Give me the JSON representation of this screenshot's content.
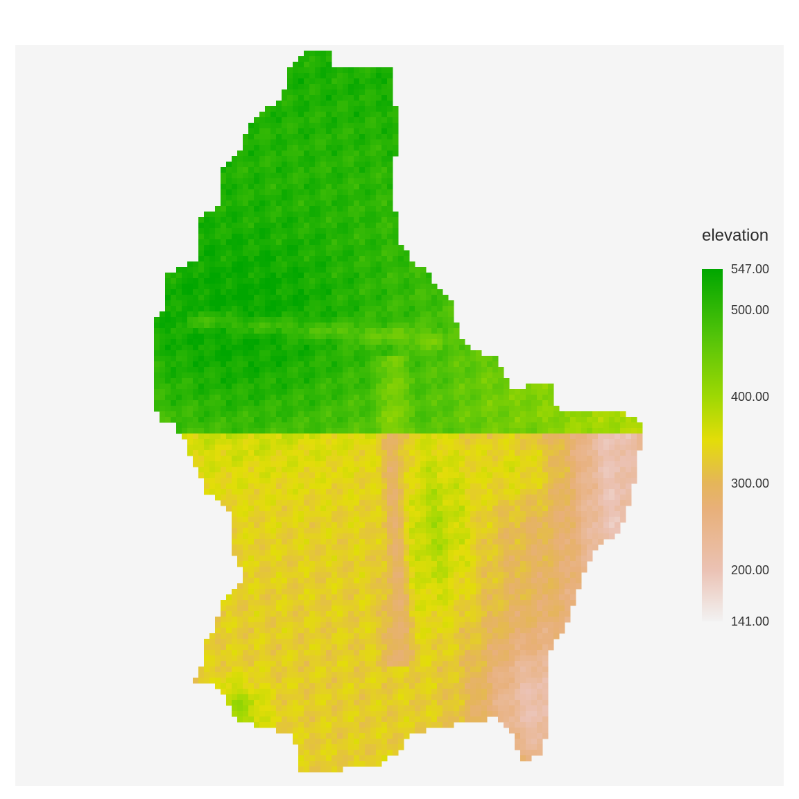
{
  "legend": {
    "title": "elevation",
    "min": 141,
    "max": 547,
    "ticks": [
      {
        "value": 547,
        "label": "547.00"
      },
      {
        "value": 500,
        "label": "500.00"
      },
      {
        "value": 400,
        "label": "400.00"
      },
      {
        "value": 300,
        "label": "300.00"
      },
      {
        "value": 200,
        "label": "200.00"
      },
      {
        "value": 141,
        "label": "141.00"
      }
    ],
    "color_stops": [
      {
        "value": 141,
        "color": "#f2f2f2"
      },
      {
        "value": 200,
        "color": "#ebc2b4"
      },
      {
        "value": 270,
        "color": "#e8b07a"
      },
      {
        "value": 300,
        "color": "#e5b55a"
      },
      {
        "value": 350,
        "color": "#e3dd09"
      },
      {
        "value": 400,
        "color": "#9ed803"
      },
      {
        "value": 470,
        "color": "#52c309"
      },
      {
        "value": 547,
        "color": "#00a600"
      }
    ]
  },
  "colors": {
    "panel_background": "#f5f5f5",
    "page_background": "#ffffff"
  }
}
